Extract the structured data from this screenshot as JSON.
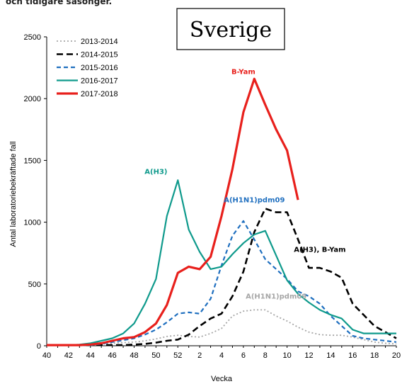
{
  "header_fragment": "och tidigare säsonger.",
  "chart_data": {
    "type": "line",
    "title": "Sverige",
    "xlabel": "Vecka",
    "ylabel": "Antal laboratoriebekräftade fall",
    "ylim": [
      0,
      2500
    ],
    "yticks": [
      "0",
      "500",
      "1000",
      "1500",
      "2000",
      "2500"
    ],
    "x_tick_labels": [
      "40",
      "42",
      "44",
      "46",
      "48",
      "50",
      "52",
      "2",
      "4",
      "6",
      "8",
      "10",
      "12",
      "14",
      "16",
      "18",
      "20"
    ],
    "x": [
      "40",
      "41",
      "42",
      "43",
      "44",
      "45",
      "46",
      "47",
      "48",
      "49",
      "50",
      "51",
      "52",
      "1",
      "2",
      "3",
      "4",
      "5",
      "6",
      "7",
      "8",
      "9",
      "10",
      "11",
      "12",
      "13",
      "14",
      "15",
      "16",
      "17",
      "18",
      "19",
      "20"
    ],
    "legend_position": "top-left",
    "series": [
      {
        "name": "2013-2014",
        "color": "#a6a6a6",
        "dash": "dotted",
        "values": [
          5,
          5,
          5,
          5,
          10,
          15,
          20,
          25,
          30,
          40,
          55,
          75,
          85,
          75,
          70,
          100,
          140,
          240,
          280,
          290,
          290,
          240,
          200,
          150,
          110,
          90,
          85,
          85,
          70,
          50,
          30,
          20,
          15
        ]
      },
      {
        "name": "2014-2015",
        "color": "#000000",
        "dash": "dashed",
        "values": [
          5,
          5,
          5,
          5,
          5,
          5,
          5,
          5,
          10,
          15,
          25,
          40,
          50,
          90,
          160,
          220,
          260,
          400,
          600,
          920,
          1110,
          1080,
          1080,
          860,
          630,
          630,
          600,
          550,
          340,
          250,
          160,
          110,
          60
        ]
      },
      {
        "name": "2015-2016",
        "color": "#1f6fbf",
        "dash": "dash-short",
        "values": [
          5,
          5,
          5,
          5,
          5,
          15,
          30,
          45,
          60,
          90,
          130,
          190,
          260,
          270,
          260,
          380,
          650,
          890,
          1010,
          860,
          700,
          620,
          540,
          440,
          400,
          340,
          240,
          160,
          80,
          60,
          50,
          40,
          30
        ]
      },
      {
        "name": "2016-2017",
        "color": "#0f9a8c",
        "dash": "solid",
        "values": [
          5,
          5,
          5,
          10,
          20,
          40,
          60,
          100,
          180,
          340,
          540,
          1050,
          1340,
          940,
          760,
          620,
          640,
          740,
          830,
          900,
          930,
          730,
          530,
          420,
          350,
          290,
          250,
          220,
          130,
          100,
          100,
          100,
          100
        ]
      },
      {
        "name": "2017-2018",
        "color": "#e8201c",
        "dash": "solid",
        "values": [
          5,
          5,
          5,
          5,
          10,
          20,
          40,
          60,
          70,
          110,
          180,
          330,
          590,
          640,
          620,
          720,
          1050,
          1430,
          1890,
          2160,
          1950,
          1750,
          1580,
          1180,
          null,
          null,
          null,
          null,
          null,
          null,
          null,
          null,
          null
        ]
      }
    ],
    "annotations": [
      {
        "text": "B-Yam",
        "color": "#e8201c",
        "x": "6",
        "y": 2200
      },
      {
        "text": "A(H3)",
        "color": "#0f9a8c",
        "x": "50",
        "y": 1390
      },
      {
        "text": "A(H1N1)pdm09",
        "color": "#1f6fbf",
        "x": "7",
        "y": 1160
      },
      {
        "text": "A(H3), B-Yam",
        "color": "#000000",
        "x": "13",
        "y": 760
      },
      {
        "text": "A(H1N1)pdm09",
        "color": "#a6a6a6",
        "x": "9",
        "y": 380
      }
    ]
  }
}
